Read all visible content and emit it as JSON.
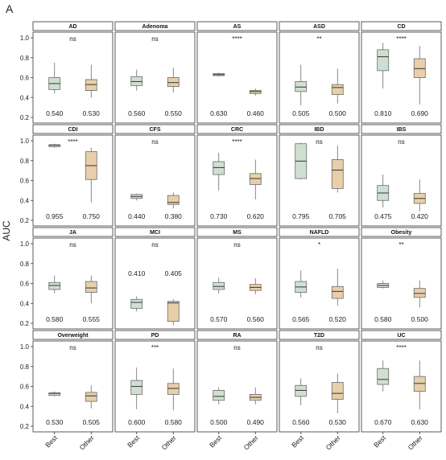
{
  "figure": {
    "panel_label": "A",
    "ylabel": "AUC"
  },
  "chart_data": {
    "type": "boxplot",
    "ylabel": "AUC",
    "ylim": [
      0.2,
      1.0
    ],
    "yticks": [
      "0.2",
      "0.4",
      "0.6",
      "0.8",
      "1.0"
    ],
    "groups": [
      "Best",
      "Other"
    ],
    "colors": {
      "Best": "#cfe0d1",
      "Other": "#e8cfaa",
      "stroke": "#6a6a6a"
    },
    "panels": [
      {
        "name": "AD",
        "sig": "ns",
        "best": {
          "min": 0.44,
          "q1": 0.48,
          "median": 0.54,
          "q3": 0.6,
          "max": 0.75,
          "label": "0.540"
        },
        "other": {
          "min": 0.4,
          "q1": 0.47,
          "median": 0.53,
          "q3": 0.58,
          "max": 0.73,
          "label": "0.530"
        }
      },
      {
        "name": "Adenoma",
        "sig": "ns",
        "best": {
          "min": 0.47,
          "q1": 0.52,
          "median": 0.56,
          "q3": 0.61,
          "max": 0.68,
          "label": "0.560"
        },
        "other": {
          "min": 0.45,
          "q1": 0.51,
          "median": 0.55,
          "q3": 0.6,
          "max": 0.7,
          "label": "0.550"
        }
      },
      {
        "name": "AS",
        "sig": "****",
        "best": {
          "min": 0.61,
          "q1": 0.62,
          "median": 0.63,
          "q3": 0.64,
          "max": 0.65,
          "label": "0.630"
        },
        "other": {
          "min": 0.42,
          "q1": 0.44,
          "median": 0.46,
          "q3": 0.47,
          "max": 0.49,
          "label": "0.460"
        }
      },
      {
        "name": "ASD",
        "sig": "**",
        "best": {
          "min": 0.32,
          "q1": 0.46,
          "median": 0.505,
          "q3": 0.56,
          "max": 0.73,
          "label": "0.505"
        },
        "other": {
          "min": 0.34,
          "q1": 0.43,
          "median": 0.5,
          "q3": 0.53,
          "max": 0.69,
          "label": "0.500"
        }
      },
      {
        "name": "CD",
        "sig": "****",
        "best": {
          "min": 0.49,
          "q1": 0.67,
          "median": 0.81,
          "q3": 0.88,
          "max": 0.95,
          "label": "0.810"
        },
        "other": {
          "min": 0.33,
          "q1": 0.6,
          "median": 0.69,
          "q3": 0.79,
          "max": 0.92,
          "label": "0.690"
        }
      },
      {
        "name": "CDI",
        "sig": "****",
        "best": {
          "min": 0.93,
          "q1": 0.94,
          "median": 0.955,
          "q3": 0.96,
          "max": 0.97,
          "label": "0.955"
        },
        "other": {
          "min": 0.38,
          "q1": 0.61,
          "median": 0.75,
          "q3": 0.89,
          "max": 0.93,
          "label": "0.750"
        }
      },
      {
        "name": "CFS",
        "sig": "ns",
        "best": {
          "min": 0.4,
          "q1": 0.42,
          "median": 0.44,
          "q3": 0.46,
          "max": 0.47,
          "label": "0.440"
        },
        "other": {
          "min": 0.32,
          "q1": 0.36,
          "median": 0.38,
          "q3": 0.45,
          "max": 0.48,
          "label": "0.380"
        }
      },
      {
        "name": "CRC",
        "sig": "****",
        "best": {
          "min": 0.5,
          "q1": 0.66,
          "median": 0.73,
          "q3": 0.79,
          "max": 0.88,
          "label": "0.730"
        },
        "other": {
          "min": 0.41,
          "q1": 0.56,
          "median": 0.62,
          "q3": 0.67,
          "max": 0.81,
          "label": "0.620"
        }
      },
      {
        "name": "IBD",
        "sig": "ns",
        "best": {
          "min": 0.61,
          "q1": 0.62,
          "median": 0.795,
          "q3": 0.97,
          "max": 0.98,
          "label": "0.795"
        },
        "other": {
          "min": 0.48,
          "q1": 0.52,
          "median": 0.705,
          "q3": 0.81,
          "max": 0.95,
          "label": "0.705"
        }
      },
      {
        "name": "IBS",
        "sig": "ns",
        "best": {
          "min": 0.33,
          "q1": 0.4,
          "median": 0.475,
          "q3": 0.55,
          "max": 0.66,
          "label": "0.475"
        },
        "other": {
          "min": 0.29,
          "q1": 0.37,
          "median": 0.42,
          "q3": 0.47,
          "max": 0.61,
          "label": "0.420"
        }
      },
      {
        "name": "JA",
        "sig": "ns",
        "best": {
          "min": 0.5,
          "q1": 0.54,
          "median": 0.58,
          "q3": 0.61,
          "max": 0.68,
          "label": "0.580"
        },
        "other": {
          "min": 0.4,
          "q1": 0.51,
          "median": 0.555,
          "q3": 0.62,
          "max": 0.68,
          "label": "0.555"
        }
      },
      {
        "name": "MCI",
        "sig": "ns",
        "best": {
          "min": 0.32,
          "q1": 0.35,
          "median": 0.41,
          "q3": 0.44,
          "max": 0.47,
          "label": "0.410"
        },
        "other": {
          "min": 0.18,
          "q1": 0.22,
          "median": 0.405,
          "q3": 0.42,
          "max": 0.44,
          "label": "0.405"
        }
      },
      {
        "name": "MS",
        "sig": "ns",
        "best": {
          "min": 0.5,
          "q1": 0.54,
          "median": 0.57,
          "q3": 0.61,
          "max": 0.66,
          "label": "0.570"
        },
        "other": {
          "min": 0.49,
          "q1": 0.53,
          "median": 0.56,
          "q3": 0.59,
          "max": 0.65,
          "label": "0.560"
        }
      },
      {
        "name": "NAFLD",
        "sig": "*",
        "best": {
          "min": 0.46,
          "q1": 0.51,
          "median": 0.565,
          "q3": 0.62,
          "max": 0.73,
          "label": "0.565"
        },
        "other": {
          "min": 0.38,
          "q1": 0.45,
          "median": 0.52,
          "q3": 0.57,
          "max": 0.75,
          "label": "0.520"
        }
      },
      {
        "name": "Obesity",
        "sig": "**",
        "best": {
          "min": 0.55,
          "q1": 0.56,
          "median": 0.58,
          "q3": 0.6,
          "max": 0.63,
          "label": "0.580"
        },
        "other": {
          "min": 0.36,
          "q1": 0.46,
          "median": 0.5,
          "q3": 0.55,
          "max": 0.63,
          "label": "0.500"
        }
      },
      {
        "name": "Overweight",
        "sig": "ns",
        "best": {
          "min": 0.5,
          "q1": 0.51,
          "median": 0.53,
          "q3": 0.535,
          "max": 0.55,
          "label": "0.530"
        },
        "other": {
          "min": 0.38,
          "q1": 0.45,
          "median": 0.505,
          "q3": 0.54,
          "max": 0.61,
          "label": "0.505"
        }
      },
      {
        "name": "PD",
        "sig": "***",
        "best": {
          "min": 0.37,
          "q1": 0.52,
          "median": 0.6,
          "q3": 0.66,
          "max": 0.79,
          "label": "0.600"
        },
        "other": {
          "min": 0.36,
          "q1": 0.52,
          "median": 0.58,
          "q3": 0.63,
          "max": 0.78,
          "label": "0.580"
        }
      },
      {
        "name": "RA",
        "sig": "ns",
        "best": {
          "min": 0.42,
          "q1": 0.46,
          "median": 0.5,
          "q3": 0.56,
          "max": 0.59,
          "label": "0.500"
        },
        "other": {
          "min": 0.42,
          "q1": 0.46,
          "median": 0.49,
          "q3": 0.52,
          "max": 0.59,
          "label": "0.490"
        }
      },
      {
        "name": "T2D",
        "sig": "ns",
        "best": {
          "min": 0.41,
          "q1": 0.5,
          "median": 0.56,
          "q3": 0.61,
          "max": 0.68,
          "label": "0.560"
        },
        "other": {
          "min": 0.33,
          "q1": 0.47,
          "median": 0.53,
          "q3": 0.64,
          "max": 0.73,
          "label": "0.530"
        }
      },
      {
        "name": "UC",
        "sig": "****",
        "best": {
          "min": 0.55,
          "q1": 0.62,
          "median": 0.67,
          "q3": 0.78,
          "max": 0.86,
          "label": "0.670"
        },
        "other": {
          "min": 0.37,
          "q1": 0.55,
          "median": 0.63,
          "q3": 0.7,
          "max": 0.86,
          "label": "0.630"
        }
      }
    ]
  }
}
